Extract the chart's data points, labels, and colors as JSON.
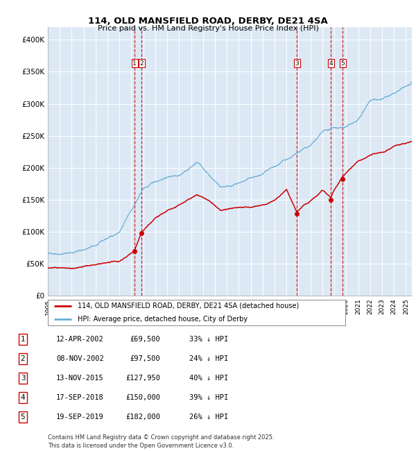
{
  "title": "114, OLD MANSFIELD ROAD, DERBY, DE21 4SA",
  "subtitle": "Price paid vs. HM Land Registry's House Price Index (HPI)",
  "background_color": "#ffffff",
  "plot_bg_color": "#dce9f5",
  "grid_color": "#ffffff",
  "ylim": [
    0,
    420000
  ],
  "yticks": [
    0,
    50000,
    100000,
    150000,
    200000,
    250000,
    300000,
    350000,
    400000
  ],
  "ytick_labels": [
    "£0",
    "£50K",
    "£100K",
    "£150K",
    "£200K",
    "£250K",
    "£300K",
    "£350K",
    "£400K"
  ],
  "hpi_color": "#6baed6",
  "price_color": "#cc0000",
  "vline_color": "#cc0000",
  "marker_color": "#cc0000",
  "purchases": [
    {
      "label": "1",
      "date_num": 2002.27,
      "price": 69500,
      "date_str": "12-APR-2002",
      "pct": "33%",
      "dir": "↓"
    },
    {
      "label": "2",
      "date_num": 2002.85,
      "price": 97500,
      "date_str": "08-NOV-2002",
      "pct": "24%",
      "dir": "↓"
    },
    {
      "label": "3",
      "date_num": 2015.87,
      "price": 127950,
      "date_str": "13-NOV-2015",
      "pct": "40%",
      "dir": "↓"
    },
    {
      "label": "4",
      "date_num": 2018.71,
      "price": 150000,
      "date_str": "17-SEP-2018",
      "pct": "39%",
      "dir": "↓"
    },
    {
      "label": "5",
      "date_num": 2019.71,
      "price": 182000,
      "date_str": "19-SEP-2019",
      "pct": "26%",
      "dir": "↓"
    }
  ],
  "legend_entries": [
    "114, OLD MANSFIELD ROAD, DERBY, DE21 4SA (detached house)",
    "HPI: Average price, detached house, City of Derby"
  ],
  "table_rows": [
    [
      "1",
      "12-APR-2002",
      "£69,500",
      "33% ↓ HPI"
    ],
    [
      "2",
      "08-NOV-2002",
      "£97,500",
      "24% ↓ HPI"
    ],
    [
      "3",
      "13-NOV-2015",
      "£127,950",
      "40% ↓ HPI"
    ],
    [
      "4",
      "17-SEP-2018",
      "£150,000",
      "39% ↓ HPI"
    ],
    [
      "5",
      "19-SEP-2019",
      "£182,000",
      "26% ↓ HPI"
    ]
  ],
  "footnote": "Contains HM Land Registry data © Crown copyright and database right 2025.\nThis data is licensed under the Open Government Licence v3.0.",
  "xlim": [
    1995,
    2025.5
  ]
}
